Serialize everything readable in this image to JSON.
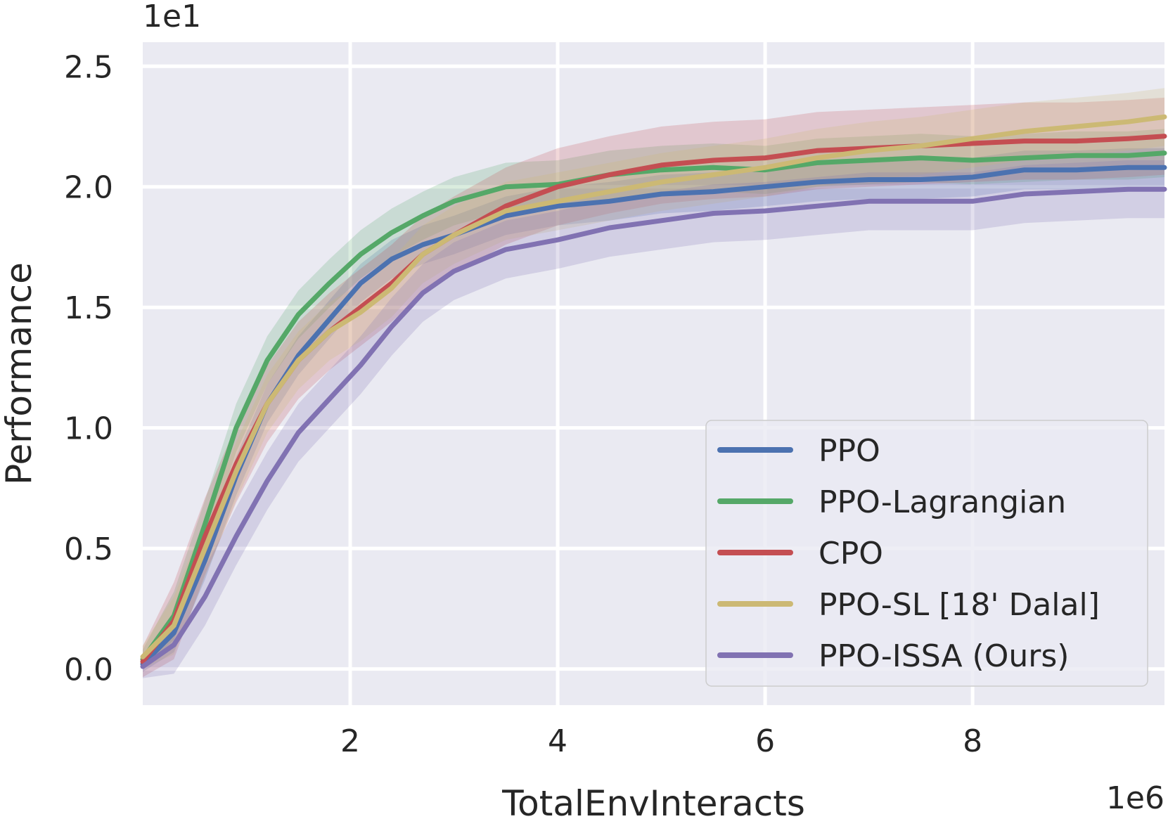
{
  "chart_data": {
    "type": "line",
    "xlabel": "TotalEnvInteracts",
    "ylabel": "Performance",
    "x_offset_label": "1e6",
    "y_offset_label": "1e1",
    "xlim": [
      0,
      9.85
    ],
    "ylim": [
      -0.15,
      2.6
    ],
    "xticks": [
      2,
      4,
      6,
      8
    ],
    "xtick_labels": [
      "2",
      "4",
      "6",
      "8"
    ],
    "yticks": [
      0.0,
      0.5,
      1.0,
      1.5,
      2.0,
      2.5
    ],
    "ytick_labels": [
      "0.0",
      "0.5",
      "1.0",
      "1.5",
      "2.0",
      "2.5"
    ],
    "grid": true,
    "legend_position": "lower-right",
    "x": [
      0,
      0.3,
      0.6,
      0.9,
      1.2,
      1.5,
      1.8,
      2.1,
      2.4,
      2.7,
      3.0,
      3.5,
      4.0,
      4.5,
      5.0,
      5.5,
      6.0,
      6.5,
      7.0,
      7.5,
      8.0,
      8.5,
      9.0,
      9.5,
      9.85
    ],
    "series": [
      {
        "name": "PPO",
        "color": "#4c72b0",
        "values": [
          0.02,
          0.15,
          0.45,
          0.8,
          1.1,
          1.3,
          1.45,
          1.6,
          1.7,
          1.76,
          1.8,
          1.88,
          1.92,
          1.94,
          1.97,
          1.98,
          2.0,
          2.02,
          2.03,
          2.03,
          2.04,
          2.07,
          2.07,
          2.08,
          2.08
        ],
        "band": 0.08
      },
      {
        "name": "PPO-Lagrangian",
        "color": "#55a868",
        "values": [
          0.04,
          0.22,
          0.6,
          1.0,
          1.28,
          1.47,
          1.6,
          1.72,
          1.81,
          1.88,
          1.94,
          2.0,
          2.01,
          2.05,
          2.07,
          2.08,
          2.07,
          2.1,
          2.11,
          2.12,
          2.11,
          2.12,
          2.13,
          2.13,
          2.14
        ],
        "band": 0.1
      },
      {
        "name": "CPO",
        "color": "#c44e52",
        "values": [
          0.03,
          0.2,
          0.55,
          0.85,
          1.1,
          1.28,
          1.4,
          1.5,
          1.6,
          1.72,
          1.8,
          1.92,
          2.0,
          2.05,
          2.09,
          2.11,
          2.12,
          2.15,
          2.16,
          2.17,
          2.18,
          2.19,
          2.19,
          2.2,
          2.21
        ],
        "band": 0.16
      },
      {
        "name": "PPO-SL [18' Dalal]",
        "color": "#ccb974",
        "values": [
          0.05,
          0.18,
          0.5,
          0.82,
          1.1,
          1.28,
          1.4,
          1.48,
          1.58,
          1.72,
          1.8,
          1.9,
          1.94,
          1.98,
          2.02,
          2.05,
          2.08,
          2.12,
          2.15,
          2.17,
          2.2,
          2.23,
          2.25,
          2.27,
          2.29
        ],
        "band": 0.12
      },
      {
        "name": "PPO-ISSA (Ours)",
        "color": "#8172b2",
        "values": [
          0.01,
          0.1,
          0.3,
          0.55,
          0.78,
          0.98,
          1.12,
          1.26,
          1.42,
          1.56,
          1.65,
          1.74,
          1.78,
          1.83,
          1.86,
          1.89,
          1.9,
          1.92,
          1.94,
          1.94,
          1.94,
          1.97,
          1.98,
          1.99,
          1.99
        ],
        "band": 0.12
      }
    ]
  }
}
